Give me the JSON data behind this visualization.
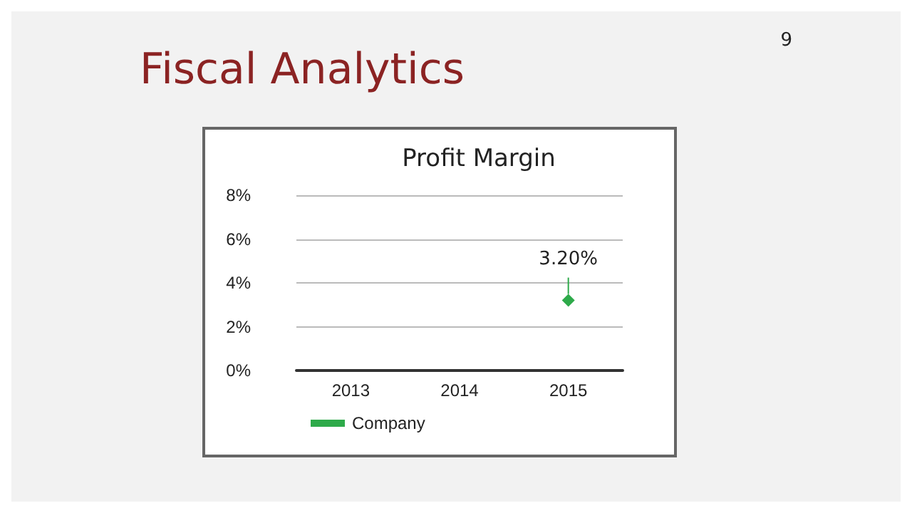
{
  "chart_data": {
    "type": "line",
    "title": "Profit Margin",
    "annotations": [
      "Fiscal Analytics",
      "9"
    ],
    "categories": [
      "2013",
      "2014",
      "2015"
    ],
    "series": [
      {
        "name": "Company",
        "color": "#2eaa4a",
        "values": [
          null,
          null,
          3.2
        ],
        "value_labels": [
          null,
          null,
          "3.20%"
        ]
      }
    ],
    "ylim": [
      0,
      8
    ],
    "yticks": [
      {
        "value": 0,
        "label": "0%"
      },
      {
        "value": 2,
        "label": "2%"
      },
      {
        "value": 4,
        "label": "4%"
      },
      {
        "value": 6,
        "label": "6%"
      },
      {
        "value": 8,
        "label": "8%"
      }
    ],
    "grid": "y",
    "legend": "bottom",
    "marker": "diamond"
  }
}
